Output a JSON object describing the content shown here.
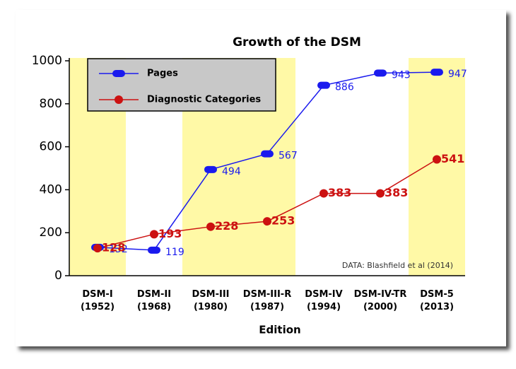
{
  "chart_data": {
    "type": "line",
    "title": "Growth of the DSM",
    "xlabel": "Edition",
    "source": "DATA: Blashfield et al (2014)",
    "categories": [
      "DSM-I (1952)",
      "DSM-II (1968)",
      "DSM-III (1980)",
      "DSM-III-R (1987)",
      "DSM-IV (1994)",
      "DSM-IV-TR (2000)",
      "DSM-5 (2013)"
    ],
    "series": [
      {
        "name": "Pages",
        "color": "#1a1aee",
        "marker": "pill",
        "values": [
          132,
          119,
          494,
          567,
          886,
          943,
          947
        ]
      },
      {
        "name": "Diagnostic Categories",
        "color": "#cc1111",
        "marker": "circle",
        "values": [
          128,
          193,
          228,
          253,
          383,
          383,
          541
        ]
      }
    ],
    "ylim": [
      0,
      1000
    ],
    "yticks": [
      0,
      200,
      400,
      600,
      800,
      1000
    ],
    "highlight": [
      0,
      2,
      3,
      6
    ],
    "highlight_color": "#fff9a6",
    "legend": "upper-left"
  }
}
